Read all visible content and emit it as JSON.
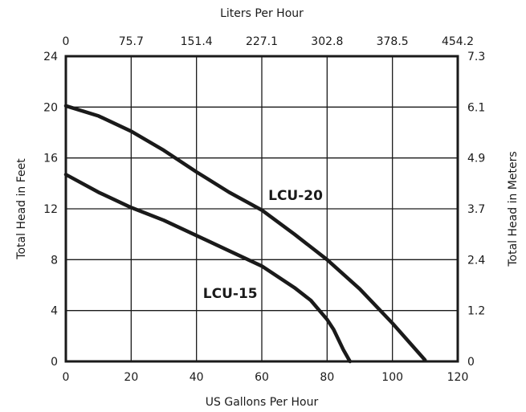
{
  "chart_data": {
    "type": "line",
    "xlabel": "US Gallons Per Hour",
    "x2label": "Liters Per Hour",
    "ylabel": "Total Head in Feet",
    "y2label": "Total Head in Meters",
    "xlim": [
      0,
      120
    ],
    "ylim": [
      0,
      24
    ],
    "x_ticks": [
      "0",
      "20",
      "40",
      "60",
      "80",
      "100",
      "120"
    ],
    "x2_ticks": [
      "0",
      "75.7",
      "151.4",
      "227.1",
      "302.8",
      "378.5",
      "454.2"
    ],
    "y_ticks": [
      "0",
      "4",
      "8",
      "12",
      "16",
      "20",
      "24"
    ],
    "y2_ticks": [
      "0",
      "1.2",
      "2.4",
      "3.7",
      "4.9",
      "6.1",
      "7.3"
    ],
    "grid": true,
    "series": [
      {
        "name": "LCU-20",
        "points": [
          [
            0,
            20.1
          ],
          [
            10,
            19.3
          ],
          [
            20,
            18.1
          ],
          [
            30,
            16.6
          ],
          [
            40,
            14.9
          ],
          [
            50,
            13.3
          ],
          [
            60,
            11.9
          ],
          [
            70,
            10.0
          ],
          [
            80,
            8.0
          ],
          [
            90,
            5.7
          ],
          [
            100,
            3.0
          ],
          [
            110,
            0.1
          ]
        ]
      },
      {
        "name": "LCU-15",
        "points": [
          [
            0,
            14.7
          ],
          [
            10,
            13.3
          ],
          [
            20,
            12.1
          ],
          [
            30,
            11.1
          ],
          [
            40,
            9.9
          ],
          [
            50,
            8.7
          ],
          [
            60,
            7.5
          ],
          [
            70,
            5.8
          ],
          [
            75,
            4.8
          ],
          [
            80,
            3.3
          ],
          [
            82,
            2.5
          ],
          [
            85,
            0.9
          ],
          [
            87,
            0.0
          ]
        ]
      }
    ],
    "series_label_anchor": [
      [
        62,
        12.7
      ],
      [
        42,
        5.0
      ]
    ]
  }
}
